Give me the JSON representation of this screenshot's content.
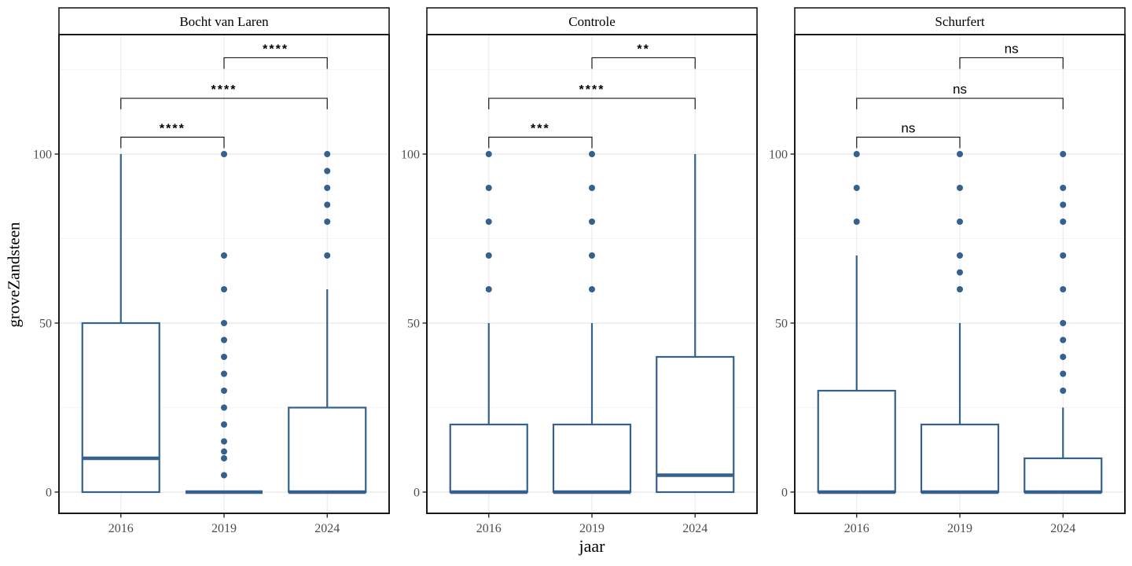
{
  "chart_data": {
    "type": "boxplot",
    "xlabel": "jaar",
    "ylabel": "groveZandsteen",
    "categories": [
      "2016",
      "2019",
      "2024"
    ],
    "yticks": [
      0,
      50,
      100
    ],
    "yticks_minor": [
      25,
      75,
      125
    ],
    "ylim": [
      -6,
      136
    ],
    "legend": "none",
    "grid": "major-and-minor",
    "colors": {
      "box_stroke": "#35618e",
      "outlier_fill": "#35618e",
      "panel_border": "#1a1a1a",
      "strip_background": "#ffffff",
      "grid_major": "#ebebeb",
      "grid_minor": "#f5f5f5",
      "tick_label": "#4d4d4d",
      "bracket": "#1a1a1a"
    },
    "facets": [
      {
        "title": "Bocht van Laren",
        "boxes": [
          {
            "year": "2016",
            "q1": 0,
            "median": 10,
            "q3": 50,
            "whisker_low": 0,
            "whisker_high": 100,
            "outliers": []
          },
          {
            "year": "2019",
            "q1": 0,
            "median": 0,
            "q3": 0,
            "whisker_low": 0,
            "whisker_high": 0,
            "outliers": [
              5,
              10,
              12,
              15,
              20,
              25,
              30,
              35,
              40,
              45,
              50,
              60,
              70,
              100
            ]
          },
          {
            "year": "2024",
            "q1": 0,
            "median": 0,
            "q3": 25,
            "whisker_low": 0,
            "whisker_high": 60,
            "outliers": [
              70,
              80,
              85,
              90,
              95,
              100
            ]
          }
        ],
        "comparisons": [
          {
            "group1": "2016",
            "group2": "2019",
            "label": "****",
            "y": 105
          },
          {
            "group1": "2016",
            "group2": "2024",
            "label": "****",
            "y": 116.5
          },
          {
            "group1": "2019",
            "group2": "2024",
            "label": "****",
            "y": 128.5
          }
        ]
      },
      {
        "title": "Controle",
        "boxes": [
          {
            "year": "2016",
            "q1": 0,
            "median": 0,
            "q3": 20,
            "whisker_low": 0,
            "whisker_high": 50,
            "outliers": [
              60,
              70,
              80,
              90,
              100
            ]
          },
          {
            "year": "2019",
            "q1": 0,
            "median": 0,
            "q3": 20,
            "whisker_low": 0,
            "whisker_high": 50,
            "outliers": [
              60,
              70,
              80,
              90,
              100
            ]
          },
          {
            "year": "2024",
            "q1": 0,
            "median": 5,
            "q3": 40,
            "whisker_low": 0,
            "whisker_high": 100,
            "outliers": []
          }
        ],
        "comparisons": [
          {
            "group1": "2016",
            "group2": "2019",
            "label": "***",
            "y": 105
          },
          {
            "group1": "2016",
            "group2": "2024",
            "label": "****",
            "y": 116.5
          },
          {
            "group1": "2019",
            "group2": "2024",
            "label": "**",
            "y": 128.5
          }
        ]
      },
      {
        "title": "Schurfert",
        "boxes": [
          {
            "year": "2016",
            "q1": 0,
            "median": 0,
            "q3": 30,
            "whisker_low": 0,
            "whisker_high": 70,
            "outliers": [
              80,
              90,
              100
            ]
          },
          {
            "year": "2019",
            "q1": 0,
            "median": 0,
            "q3": 20,
            "whisker_low": 0,
            "whisker_high": 50,
            "outliers": [
              60,
              65,
              70,
              80,
              90,
              100
            ]
          },
          {
            "year": "2024",
            "q1": 0,
            "median": 0,
            "q3": 10,
            "whisker_low": 0,
            "whisker_high": 25,
            "outliers": [
              30,
              35,
              40,
              45,
              50,
              60,
              70,
              80,
              85,
              90,
              100
            ]
          }
        ],
        "comparisons": [
          {
            "group1": "2016",
            "group2": "2019",
            "label": "ns",
            "y": 105
          },
          {
            "group1": "2016",
            "group2": "2024",
            "label": "ns",
            "y": 116.5
          },
          {
            "group1": "2019",
            "group2": "2024",
            "label": "ns",
            "y": 128.5
          }
        ]
      }
    ]
  }
}
